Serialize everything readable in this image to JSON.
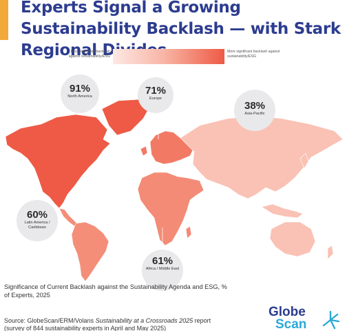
{
  "title": "Experts Signal a Growing Sustainability Backlash — with Stark Regional Divides",
  "legend": {
    "low_label": "Less significant backlash against sustainability/ESG",
    "high_label": "More significant backlash against sustainability/ESG",
    "low_color": "#fde8e4",
    "high_color": "#ee5a45"
  },
  "regions": [
    {
      "name": "North America",
      "value": "91%",
      "color": "#ee5a45"
    },
    {
      "name": "Europe",
      "value": "71%",
      "color": "#f27a64"
    },
    {
      "name": "Asia-Pacific",
      "value": "38%",
      "color": "#f9c2b4"
    },
    {
      "name": "Latin America / Caribbean",
      "value": "60%",
      "color": "#f48e79"
    },
    {
      "name": "Africa / Middle East",
      "value": "61%",
      "color": "#f38b76"
    }
  ],
  "footnote": "Significance of Current Backlash against the Sustainability Agenda and ESG, % of Experts, 2025",
  "source": {
    "prefix": "Source: GlobeScan/ERM/Volans ",
    "report": "Sustainability at a Crossroads 2025",
    "suffix": " report (survey of 844 sustainability experts in April and May 2025)"
  },
  "logo": {
    "line1": "Globe",
    "line2": "Scan"
  }
}
